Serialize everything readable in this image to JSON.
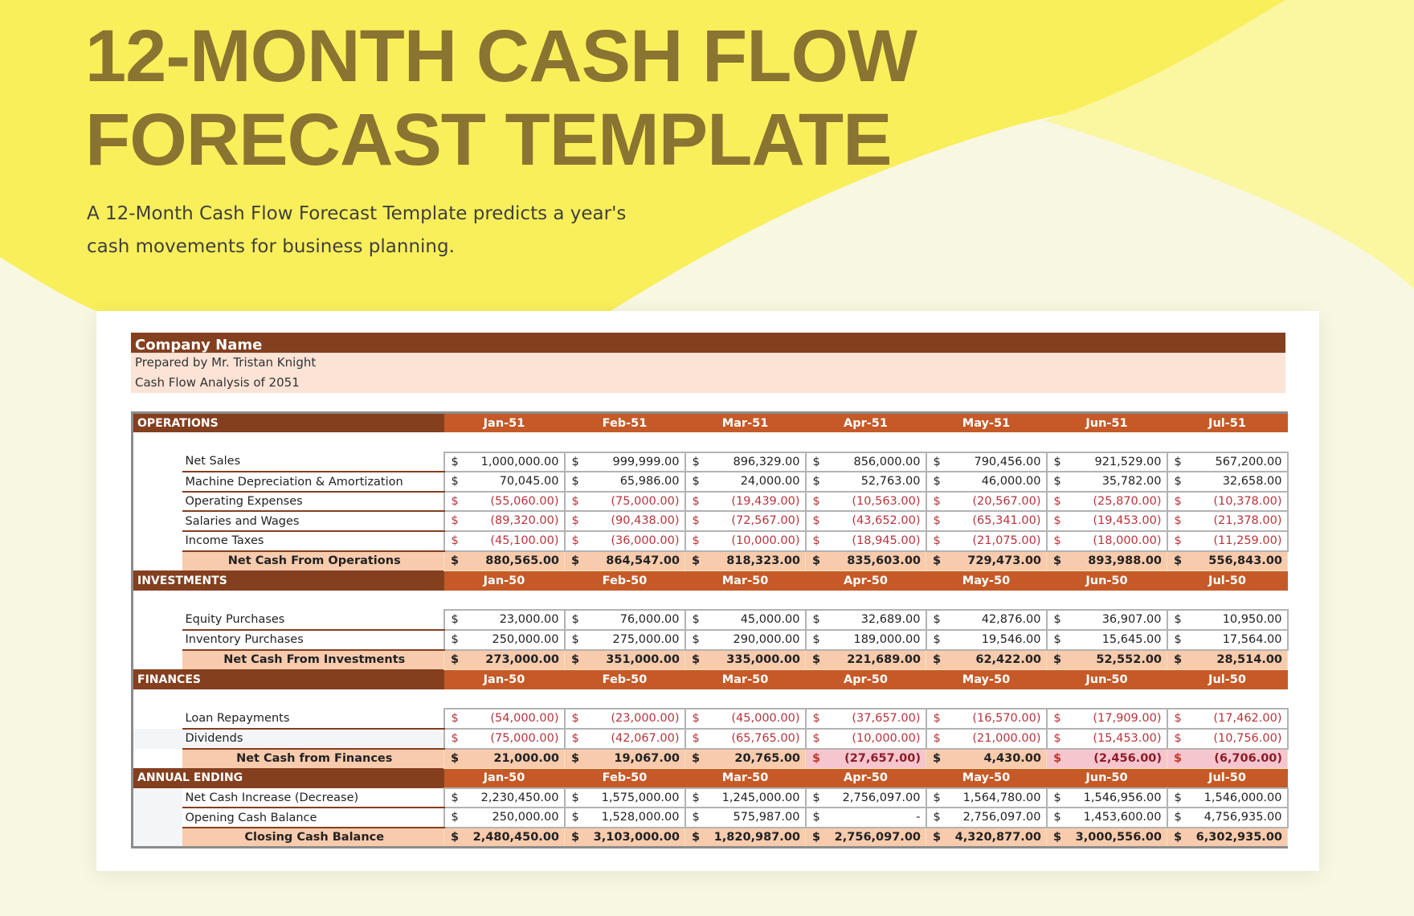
{
  "header": {
    "title_line1": "12-MONTH CASH FLOW",
    "title_line2": "FORECAST TEMPLATE",
    "subtitle": "A 12-Month Cash Flow Forecast Template predicts a year's cash movements for business planning."
  },
  "colors": {
    "title": "#8a7431",
    "yellow": "#f9ef5a",
    "dark_brown": "#843f1f",
    "orange": "#c55a28",
    "peach": "#f8cbad",
    "negative": "#b7343c"
  },
  "sheet": {
    "company": "Company Name",
    "prepared_by": "Prepared by Mr. Tristan Knight",
    "analysis": "Cash Flow Analysis of 2051",
    "sections": [
      {
        "title": "OPERATIONS",
        "months": [
          "Jan-51",
          "Feb-51",
          "Mar-51",
          "Apr-51",
          "May-51",
          "Jun-51",
          "Jul-51"
        ],
        "spacer": true,
        "rows": [
          {
            "label": "Net Sales",
            "values": [
              "1,000,000.00",
              "999,999.00",
              "896,329.00",
              "856,000.00",
              "790,456.00",
              "921,529.00",
              "567,200.00"
            ]
          },
          {
            "label": "Machine Depreciation & Amortization",
            "values": [
              "70,045.00",
              "65,986.00",
              "24,000.00",
              "52,763.00",
              "46,000.00",
              "35,782.00",
              "32,658.00"
            ]
          },
          {
            "label": "Operating Expenses",
            "negative": true,
            "values": [
              "(55,060.00)",
              "(75,000.00)",
              "(19,439.00)",
              "(10,563.00)",
              "(20,567.00)",
              "(25,870.00)",
              "(10,378.00)"
            ]
          },
          {
            "label": "Salaries and Wages",
            "negative": true,
            "values": [
              "(89,320.00)",
              "(90,438.00)",
              "(72,567.00)",
              "(43,652.00)",
              "(65,341.00)",
              "(19,453.00)",
              "(21,378.00)"
            ]
          },
          {
            "label": "Income Taxes",
            "negative": true,
            "values": [
              "(45,100.00)",
              "(36,000.00)",
              "(10,000.00)",
              "(18,945.00)",
              "(21,075.00)",
              "(18,000.00)",
              "(11,259.00)"
            ]
          }
        ],
        "total": {
          "label": "Net Cash From Operations",
          "values": [
            "880,565.00",
            "864,547.00",
            "818,323.00",
            "835,603.00",
            "729,473.00",
            "893,988.00",
            "556,843.00"
          ]
        }
      },
      {
        "title": "INVESTMENTS",
        "months": [
          "Jan-50",
          "Feb-50",
          "Mar-50",
          "Apr-50",
          "May-50",
          "Jun-50",
          "Jul-50"
        ],
        "spacer": true,
        "rows": [
          {
            "label": "Equity Purchases",
            "values": [
              "23,000.00",
              "76,000.00",
              "45,000.00",
              "32,689.00",
              "42,876.00",
              "36,907.00",
              "10,950.00"
            ]
          },
          {
            "label": "Inventory Purchases",
            "values": [
              "250,000.00",
              "275,000.00",
              "290,000.00",
              "189,000.00",
              "19,546.00",
              "15,645.00",
              "17,564.00"
            ]
          }
        ],
        "total": {
          "label": "Net Cash From Investments",
          "values": [
            "273,000.00",
            "351,000.00",
            "335,000.00",
            "221,689.00",
            "62,422.00",
            "52,552.00",
            "28,514.00"
          ]
        }
      },
      {
        "title": "FINANCES",
        "months": [
          "Jan-50",
          "Feb-50",
          "Mar-50",
          "Apr-50",
          "May-50",
          "Jun-50",
          "Jul-50"
        ],
        "spacer": true,
        "rows": [
          {
            "label": "Loan Repayments",
            "negative": true,
            "values": [
              "(54,000.00)",
              "(23,000.00)",
              "(45,000.00)",
              "(37,657.00)",
              "(16,570.00)",
              "(17,909.00)",
              "(17,462.00)"
            ]
          },
          {
            "label": "Dividends",
            "negative": true,
            "grey": true,
            "values": [
              "(75,000.00)",
              "(42,067.00)",
              "(65,765.00)",
              "(10,000.00)",
              "(21,000.00)",
              "(15,453.00)",
              "(10,756.00)"
            ]
          }
        ],
        "total": {
          "label": "Net Cash from Finances",
          "values": [
            "21,000.00",
            "19,067.00",
            "20,765.00",
            "(27,657.00)",
            "4,430.00",
            "(2,456.00)",
            "(6,706.00)"
          ]
        }
      },
      {
        "title": "ANNUAL ENDING",
        "months": [
          "Jan-50",
          "Feb-50",
          "Mar-50",
          "Apr-50",
          "May-50",
          "Jun-50",
          "Jul-50"
        ],
        "spacer": false,
        "annual": true,
        "rows": [
          {
            "label": "Net Cash Increase (Decrease)",
            "values": [
              "2,230,450.00",
              "1,575,000.00",
              "1,245,000.00",
              "2,756,097.00",
              "1,564,780.00",
              "1,546,956.00",
              "1,546,000.00"
            ]
          },
          {
            "label": "Opening Cash Balance",
            "values": [
              "250,000.00",
              "1,528,000.00",
              "575,987.00",
              "-",
              "2,756,097.00",
              "1,453,600.00",
              "4,756,935.00"
            ]
          }
        ],
        "total": {
          "label": "Closing Cash Balance",
          "values": [
            "2,480,450.00",
            "3,103,000.00",
            "1,820,987.00",
            "2,756,097.00",
            "4,320,877.00",
            "3,000,556.00",
            "6,302,935.00"
          ]
        }
      }
    ],
    "currency": "$"
  }
}
